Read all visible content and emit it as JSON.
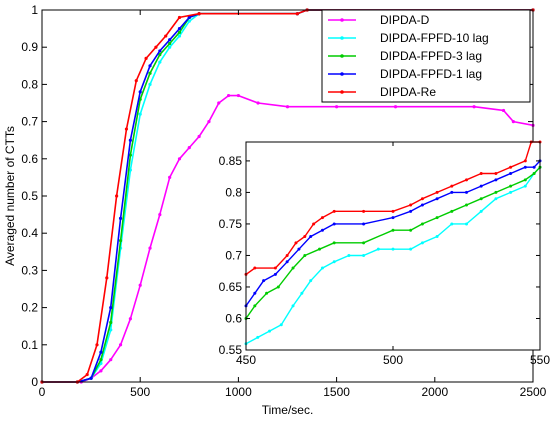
{
  "chart_data": [
    {
      "type": "line",
      "title": "",
      "xlabel": "Time/sec.",
      "ylabel": "Averaged number of CTTs",
      "xlim": [
        0,
        2500
      ],
      "ylim": [
        0,
        1
      ],
      "xticks": [
        "0",
        "500",
        "1000",
        "1500",
        "2000",
        "2500"
      ],
      "yticks": [
        "0",
        "0.1",
        "0.2",
        "0.3",
        "0.4",
        "0.5",
        "0.6",
        "0.7",
        "0.8",
        "0.9",
        "1"
      ],
      "legend_position": "top-right",
      "grid": false,
      "series": [
        {
          "name": "DIPDA-D",
          "color": "#ff00ff",
          "points": [
            [
              0,
              0
            ],
            [
              200,
              0
            ],
            [
              250,
              0.01
            ],
            [
              300,
              0.03
            ],
            [
              350,
              0.06
            ],
            [
              400,
              0.1
            ],
            [
              450,
              0.17
            ],
            [
              500,
              0.26
            ],
            [
              550,
              0.36
            ],
            [
              600,
              0.45
            ],
            [
              650,
              0.55
            ],
            [
              700,
              0.6
            ],
            [
              750,
              0.63
            ],
            [
              800,
              0.66
            ],
            [
              850,
              0.7
            ],
            [
              900,
              0.75
            ],
            [
              950,
              0.77
            ],
            [
              1000,
              0.77
            ],
            [
              1100,
              0.75
            ],
            [
              1250,
              0.74
            ],
            [
              1500,
              0.74
            ],
            [
              1800,
              0.74
            ],
            [
              2200,
              0.74
            ],
            [
              2350,
              0.73
            ],
            [
              2400,
              0.7
            ],
            [
              2500,
              0.69
            ]
          ]
        },
        {
          "name": "DIPDA-FPFD-10 lag",
          "color": "#00ffff",
          "points": [
            [
              0,
              0
            ],
            [
              180,
              0
            ],
            [
              250,
              0.01
            ],
            [
              300,
              0.05
            ],
            [
              350,
              0.14
            ],
            [
              400,
              0.36
            ],
            [
              450,
              0.57
            ],
            [
              500,
              0.72
            ],
            [
              550,
              0.8
            ],
            [
              600,
              0.86
            ],
            [
              650,
              0.9
            ],
            [
              700,
              0.93
            ],
            [
              750,
              0.97
            ],
            [
              800,
              0.99
            ],
            [
              1300,
              0.99
            ],
            [
              1350,
              1
            ],
            [
              2500,
              1
            ]
          ]
        },
        {
          "name": "DIPDA-FPFD-3 lag",
          "color": "#00cc00",
          "points": [
            [
              0,
              0
            ],
            [
              180,
              0
            ],
            [
              250,
              0.01
            ],
            [
              300,
              0.06
            ],
            [
              350,
              0.16
            ],
            [
              400,
              0.38
            ],
            [
              450,
              0.61
            ],
            [
              500,
              0.76
            ],
            [
              550,
              0.83
            ],
            [
              600,
              0.88
            ],
            [
              650,
              0.91
            ],
            [
              700,
              0.94
            ],
            [
              750,
              0.98
            ],
            [
              800,
              0.99
            ],
            [
              1300,
              0.99
            ],
            [
              1350,
              1
            ],
            [
              2500,
              1
            ]
          ]
        },
        {
          "name": "DIPDA-FPFD-1 lag",
          "color": "#0000ff",
          "points": [
            [
              0,
              0
            ],
            [
              180,
              0
            ],
            [
              250,
              0.01
            ],
            [
              300,
              0.08
            ],
            [
              350,
              0.2
            ],
            [
              400,
              0.44
            ],
            [
              450,
              0.65
            ],
            [
              500,
              0.78
            ],
            [
              550,
              0.85
            ],
            [
              600,
              0.89
            ],
            [
              650,
              0.92
            ],
            [
              700,
              0.95
            ],
            [
              750,
              0.98
            ],
            [
              800,
              0.99
            ],
            [
              1300,
              0.99
            ],
            [
              1350,
              1
            ],
            [
              2500,
              1
            ]
          ]
        },
        {
          "name": "DIPDA-Re",
          "color": "#ff0000",
          "points": [
            [
              0,
              0
            ],
            [
              180,
              0
            ],
            [
              230,
              0.02
            ],
            [
              280,
              0.1
            ],
            [
              330,
              0.28
            ],
            [
              380,
              0.5
            ],
            [
              430,
              0.68
            ],
            [
              480,
              0.81
            ],
            [
              530,
              0.87
            ],
            [
              580,
              0.9
            ],
            [
              630,
              0.93
            ],
            [
              700,
              0.98
            ],
            [
              800,
              0.99
            ],
            [
              1300,
              0.99
            ],
            [
              1350,
              1
            ],
            [
              2500,
              1
            ]
          ]
        }
      ]
    },
    {
      "type": "line",
      "title": "",
      "xlabel": "",
      "ylabel": "",
      "xlim": [
        450,
        550
      ],
      "ylim": [
        0.55,
        0.88
      ],
      "xticks": [
        "450",
        "500",
        "550"
      ],
      "yticks": [
        "0.55",
        "0.6",
        "0.65",
        "0.7",
        "0.75",
        "0.8",
        "0.85"
      ],
      "series": [
        {
          "color": "#00ffff",
          "points": [
            [
              450,
              0.56
            ],
            [
              454,
              0.57
            ],
            [
              458,
              0.58
            ],
            [
              462,
              0.59
            ],
            [
              466,
              0.62
            ],
            [
              469,
              0.64
            ],
            [
              472,
              0.66
            ],
            [
              476,
              0.68
            ],
            [
              480,
              0.69
            ],
            [
              485,
              0.7
            ],
            [
              490,
              0.7
            ],
            [
              495,
              0.71
            ],
            [
              500,
              0.71
            ],
            [
              506,
              0.71
            ],
            [
              510,
              0.72
            ],
            [
              515,
              0.73
            ],
            [
              520,
              0.75
            ],
            [
              525,
              0.75
            ],
            [
              530,
              0.77
            ],
            [
              535,
              0.79
            ],
            [
              540,
              0.8
            ],
            [
              545,
              0.81
            ],
            [
              548,
              0.83
            ],
            [
              550,
              0.84
            ]
          ]
        },
        {
          "color": "#00cc00",
          "points": [
            [
              450,
              0.6
            ],
            [
              453,
              0.62
            ],
            [
              457,
              0.64
            ],
            [
              461,
              0.65
            ],
            [
              466,
              0.68
            ],
            [
              470,
              0.7
            ],
            [
              475,
              0.71
            ],
            [
              480,
              0.72
            ],
            [
              490,
              0.72
            ],
            [
              500,
              0.74
            ],
            [
              506,
              0.74
            ],
            [
              510,
              0.75
            ],
            [
              515,
              0.76
            ],
            [
              520,
              0.77
            ],
            [
              525,
              0.78
            ],
            [
              530,
              0.79
            ],
            [
              535,
              0.8
            ],
            [
              540,
              0.81
            ],
            [
              545,
              0.82
            ],
            [
              548,
              0.83
            ],
            [
              550,
              0.84
            ]
          ]
        },
        {
          "color": "#0000ff",
          "points": [
            [
              450,
              0.62
            ],
            [
              453,
              0.64
            ],
            [
              456,
              0.66
            ],
            [
              460,
              0.67
            ],
            [
              464,
              0.69
            ],
            [
              468,
              0.71
            ],
            [
              472,
              0.73
            ],
            [
              476,
              0.74
            ],
            [
              480,
              0.75
            ],
            [
              490,
              0.75
            ],
            [
              500,
              0.76
            ],
            [
              506,
              0.77
            ],
            [
              510,
              0.78
            ],
            [
              515,
              0.79
            ],
            [
              520,
              0.8
            ],
            [
              525,
              0.8
            ],
            [
              530,
              0.81
            ],
            [
              535,
              0.82
            ],
            [
              540,
              0.83
            ],
            [
              545,
              0.84
            ],
            [
              548,
              0.84
            ],
            [
              550,
              0.85
            ]
          ]
        },
        {
          "color": "#ff0000",
          "points": [
            [
              450,
              0.67
            ],
            [
              453,
              0.68
            ],
            [
              460,
              0.68
            ],
            [
              464,
              0.7
            ],
            [
              467,
              0.72
            ],
            [
              470,
              0.73
            ],
            [
              473,
              0.75
            ],
            [
              476,
              0.76
            ],
            [
              480,
              0.77
            ],
            [
              490,
              0.77
            ],
            [
              500,
              0.77
            ],
            [
              506,
              0.78
            ],
            [
              510,
              0.79
            ],
            [
              515,
              0.8
            ],
            [
              520,
              0.81
            ],
            [
              525,
              0.82
            ],
            [
              530,
              0.83
            ],
            [
              535,
              0.83
            ],
            [
              540,
              0.84
            ],
            [
              545,
              0.85
            ],
            [
              547,
              0.88
            ],
            [
              550,
              0.88
            ]
          ]
        }
      ]
    }
  ]
}
